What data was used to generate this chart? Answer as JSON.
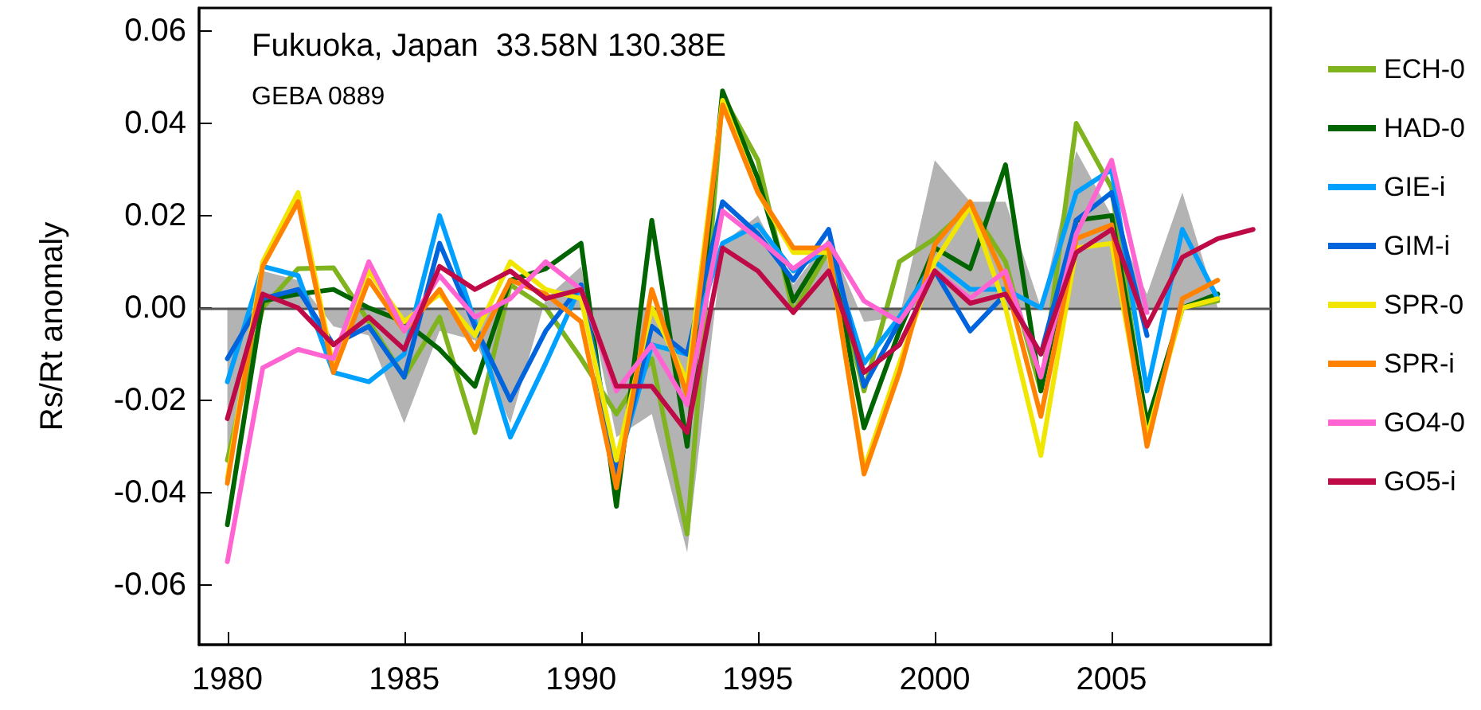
{
  "chart_data": {
    "type": "line",
    "title": "Fukuoka, Japan  33.58N 130.38E",
    "subtitle": "GEBA 0889",
    "ylabel": "Rs/Rt anomaly",
    "x": [
      1980,
      1981,
      1982,
      1983,
      1984,
      1985,
      1986,
      1987,
      1988,
      1989,
      1990,
      1991,
      1992,
      1993,
      1994,
      1995,
      1996,
      1997,
      1998,
      1999,
      2000,
      2001,
      2002,
      2003,
      2004,
      2005,
      2006,
      2007,
      2008,
      2009
    ],
    "xlim": [
      1979.2,
      2009.5
    ],
    "xticks": [
      1980,
      1985,
      1990,
      1995,
      2000,
      2005
    ],
    "ylim": [
      -0.073,
      0.065
    ],
    "yticks": [
      -0.06,
      -0.04,
      -0.02,
      {
        "value": 0,
        "label": "0.00"
      },
      0.02,
      0.04,
      0.06
    ],
    "legend": "right",
    "grid": false,
    "marker": "none",
    "line_style": "solid",
    "ref_lines": [
      {
        "axis": "y",
        "value": 0,
        "color": "#555555"
      }
    ],
    "series": [
      {
        "type": "area",
        "color": "#b3b3b3",
        "values": [
          -0.04,
          0.008,
          0.006,
          -0.004,
          -0.006,
          -0.025,
          -0.005,
          -0.007,
          -0.025,
          0.002,
          0.009,
          -0.028,
          -0.023,
          -0.053,
          0.014,
          0.02,
          0.005,
          0.015,
          -0.003,
          -0.002,
          0.032,
          0.023,
          0.023,
          0,
          0.034,
          0.02,
          0.003,
          0.025,
          0,
          null
        ]
      },
      {
        "name": "ECH-0",
        "color": "#80b41e",
        "values": [
          -0.033,
          0,
          0.0085,
          0.0087,
          -0.003,
          -0.015,
          -0.002,
          -0.027,
          0.005,
          0,
          -0.011,
          -0.023,
          -0.011,
          -0.049,
          0.046,
          0.032,
          -0.001,
          0.0125,
          -0.018,
          0.01,
          0.015,
          0.022,
          0.01,
          -0.018,
          0.04,
          0.026,
          -0.027,
          0,
          0.0015,
          null
        ]
      },
      {
        "name": "HAD-0",
        "color": "#006400",
        "values": [
          -0.047,
          0.0015,
          0.003,
          0.004,
          0,
          -0.003,
          -0.009,
          -0.017,
          0.006,
          0.0085,
          0.014,
          -0.043,
          0.019,
          -0.03,
          0.047,
          0.028,
          0.0015,
          0.014,
          -0.026,
          -0.005,
          0.013,
          0.0085,
          0.031,
          -0.018,
          0.019,
          0.02,
          -0.025,
          0,
          0.003,
          null
        ]
      },
      {
        "name": "GIE-i",
        "color": "#00a0ff",
        "values": [
          -0.016,
          0.009,
          0.007,
          -0.014,
          -0.016,
          -0.01,
          0.02,
          -0.003,
          -0.028,
          -0.012,
          0.005,
          -0.035,
          -0.008,
          -0.01,
          0.014,
          0.018,
          0.008,
          0.013,
          -0.012,
          -0.002,
          0.01,
          0.004,
          0.004,
          0,
          0.025,
          0.03,
          -0.018,
          0.017,
          0.002,
          null
        ]
      },
      {
        "name": "GIM-i",
        "color": "#0064dc",
        "values": [
          -0.011,
          0.002,
          0.004,
          -0.008,
          -0.004,
          -0.015,
          0.014,
          -0.004,
          -0.02,
          -0.005,
          0.005,
          -0.036,
          -0.004,
          -0.01,
          0.023,
          0.016,
          0.006,
          0.017,
          -0.017,
          -0.003,
          0.008,
          -0.005,
          0.003,
          -0.01,
          0.019,
          0.025,
          -0.006,
          null,
          null,
          null
        ]
      },
      {
        "name": "SPR-0",
        "color": "#f0e600",
        "values": [
          -0.037,
          0.01,
          0.025,
          -0.013,
          0.008,
          -0.003,
          0.003,
          -0.006,
          0.01,
          0.004,
          0.002,
          -0.033,
          0,
          -0.016,
          0.045,
          0.025,
          0.012,
          0.012,
          -0.035,
          -0.012,
          0.01,
          0.022,
          0,
          -0.032,
          0.013,
          0.014,
          -0.028,
          0,
          0.002,
          null
        ]
      },
      {
        "name": "SPR-i",
        "color": "#ff8200",
        "values": [
          -0.038,
          0.009,
          0.023,
          -0.014,
          0.006,
          -0.005,
          0.004,
          -0.009,
          0.006,
          0.003,
          -0.003,
          -0.039,
          0.004,
          -0.019,
          0.044,
          0.025,
          0.013,
          0.013,
          -0.036,
          -0.014,
          0.0137,
          0.023,
          0.006,
          -0.0235,
          0.015,
          0.018,
          -0.03,
          0.002,
          0.006,
          null
        ]
      },
      {
        "name": "GO4-0",
        "color": "#ff64d2",
        "values": [
          -0.055,
          -0.013,
          -0.009,
          -0.011,
          0.01,
          -0.005,
          0.007,
          -0.002,
          0.002,
          0.01,
          0.004,
          -0.018,
          -0.008,
          -0.021,
          0.021,
          0.015,
          0.0085,
          0.014,
          0.0015,
          -0.003,
          0.008,
          0.002,
          0.008,
          -0.015,
          0.016,
          0.032,
          -0.001,
          null,
          null,
          null
        ]
      },
      {
        "name": "GO5-i",
        "color": "#be0a46",
        "values": [
          -0.024,
          0.003,
          0,
          -0.008,
          -0.002,
          -0.009,
          0.009,
          0.004,
          0.008,
          0.002,
          0.004,
          -0.017,
          -0.017,
          -0.027,
          0.013,
          0.008,
          -0.001,
          0.008,
          -0.014,
          -0.008,
          0.008,
          0.001,
          0.003,
          -0.01,
          0.012,
          0.017,
          -0.004,
          0.011,
          0.015,
          0.017
        ]
      }
    ]
  }
}
